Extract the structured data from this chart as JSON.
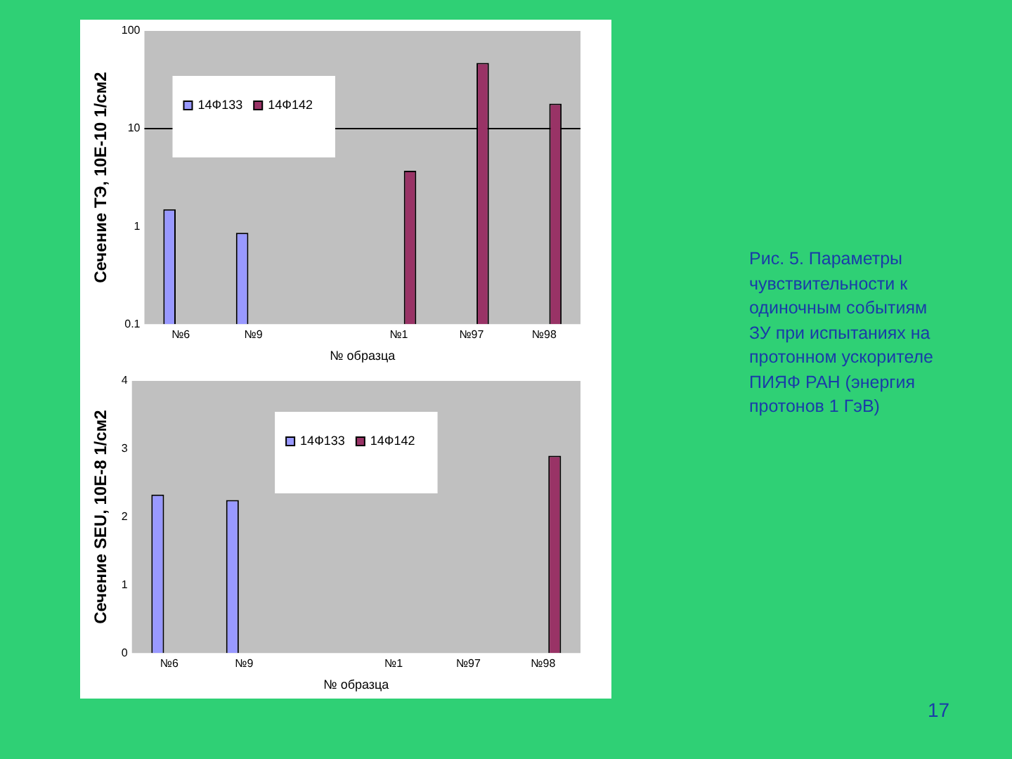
{
  "chart_data": [
    {
      "type": "bar",
      "categories": [
        "№6",
        "№9",
        null,
        "№1",
        "№97",
        "№98"
      ],
      "series": [
        {
          "name": "14Ф133",
          "color": "#9999ff",
          "values": [
            1.5,
            0.86,
            null,
            null,
            null,
            null
          ]
        },
        {
          "name": "14Ф142",
          "color": "#993366",
          "values": [
            null,
            null,
            null,
            3.7,
            47,
            18
          ]
        }
      ],
      "log": true,
      "ylim": [
        0.1,
        100
      ],
      "yticks": [
        0.1,
        1,
        10,
        100
      ],
      "ylabel": "Сечение ТЭ, 10E-10 1/см2",
      "xlabel": "№ образца",
      "ref_lines": [
        {
          "axis": "y",
          "value": 10,
          "color": "#000000"
        }
      ],
      "legend": "top left",
      "annotations": [
        "Рис. 5. Параметры чувствительности к одиночным событиям ЗУ при испытаниях на протонном ускорителе ПИЯФ РАН (энергия протонов 1 ГэВ)"
      ]
    },
    {
      "type": "bar",
      "categories": [
        "№6",
        "№9",
        null,
        "№1",
        "№97",
        "№98"
      ],
      "series": [
        {
          "name": "14Ф133",
          "color": "#9999ff",
          "values": [
            2.33,
            2.25,
            null,
            null,
            null,
            null
          ]
        },
        {
          "name": "14Ф142",
          "color": "#993366",
          "values": [
            null,
            null,
            null,
            null,
            null,
            2.9
          ]
        }
      ],
      "ylim": [
        0,
        4
      ],
      "yticks": [
        0,
        1,
        2,
        3,
        4
      ],
      "ylabel": "Сечение SEU, 10E-8 1/см2",
      "xlabel": "№ образца",
      "legend": "top",
      "annotations": [
        "17"
      ]
    }
  ]
}
